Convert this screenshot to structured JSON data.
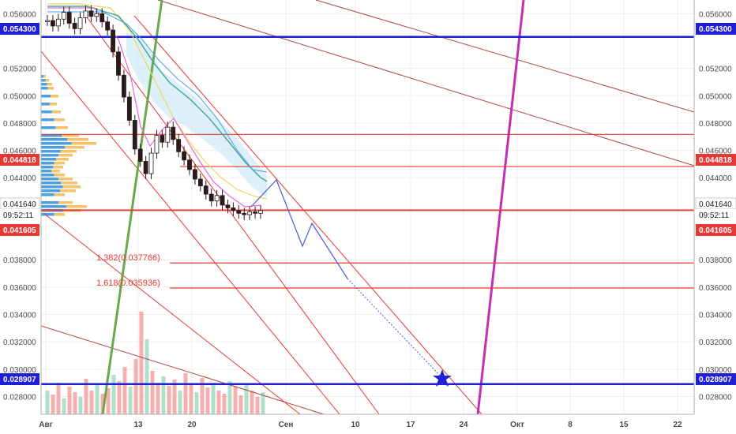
{
  "colors": {
    "price_line_blue": "#1f1fd6",
    "trend_red": "#e53935",
    "trend_darkred": "#b2443e",
    "magenta_line": "#c12fb3",
    "green_line": "#6aa84f",
    "candle_up": "#ffffff",
    "candle_down": "#2b1a1a",
    "vol_red": "#f4a6a6",
    "vol_green": "#a7dcc9",
    "profile_blue": "#4f9fe0",
    "profile_orange": "#f5c36b",
    "cloud": "#cfe8f5",
    "grid": "#eeeeee"
  },
  "axis": {
    "y_ticks": [
      "0.056000",
      "0.052000",
      "0.050000",
      "0.048000",
      "0.046000",
      "0.044000",
      "0.038000",
      "0.036000",
      "0.034000",
      "0.032000",
      "0.030000",
      "0.028000"
    ],
    "x_ticks": [
      "Авг",
      "13",
      "20",
      "Сен",
      "10",
      "17",
      "24",
      "Окт",
      "8",
      "15",
      "22"
    ]
  },
  "badges": {
    "b1": "0.054300",
    "b2": "0.044818",
    "b3": "0.041640",
    "b4": "09:52:11",
    "b5": "0.041605",
    "b6": "0.028907"
  },
  "fib": {
    "f1": "1.382(0.037766)",
    "f2": "1.618(0.035936)"
  },
  "chart_data": {
    "type": "candlestick",
    "ylim": [
      0.0267,
      0.057
    ],
    "horizontal_levels": [
      {
        "value": 0.0543,
        "color": "blue"
      },
      {
        "value": 0.04717,
        "color": "red"
      },
      {
        "value": 0.044818,
        "color": "red"
      },
      {
        "value": 0.04164,
        "color": "red"
      },
      {
        "value": 0.041605,
        "color": "red"
      },
      {
        "value": 0.037766,
        "color": "red",
        "label": "1.382(0.037766)"
      },
      {
        "value": 0.035936,
        "color": "red",
        "label": "1.618(0.035936)"
      },
      {
        "value": 0.028907,
        "color": "blue"
      }
    ],
    "close_series": [
      0.0555,
      0.0551,
      0.0556,
      0.0561,
      0.0553,
      0.0549,
      0.0557,
      0.0562,
      0.0558,
      0.056,
      0.0554,
      0.0548,
      0.0532,
      0.0515,
      0.0499,
      0.0482,
      0.0461,
      0.0452,
      0.0443,
      0.0458,
      0.0471,
      0.0466,
      0.0477,
      0.0468,
      0.0459,
      0.0453,
      0.0446,
      0.0439,
      0.0434,
      0.0428,
      0.0423,
      0.0427,
      0.042,
      0.0418,
      0.0416,
      0.0414,
      0.0413,
      0.0415,
      0.0414,
      0.0416
    ]
  }
}
